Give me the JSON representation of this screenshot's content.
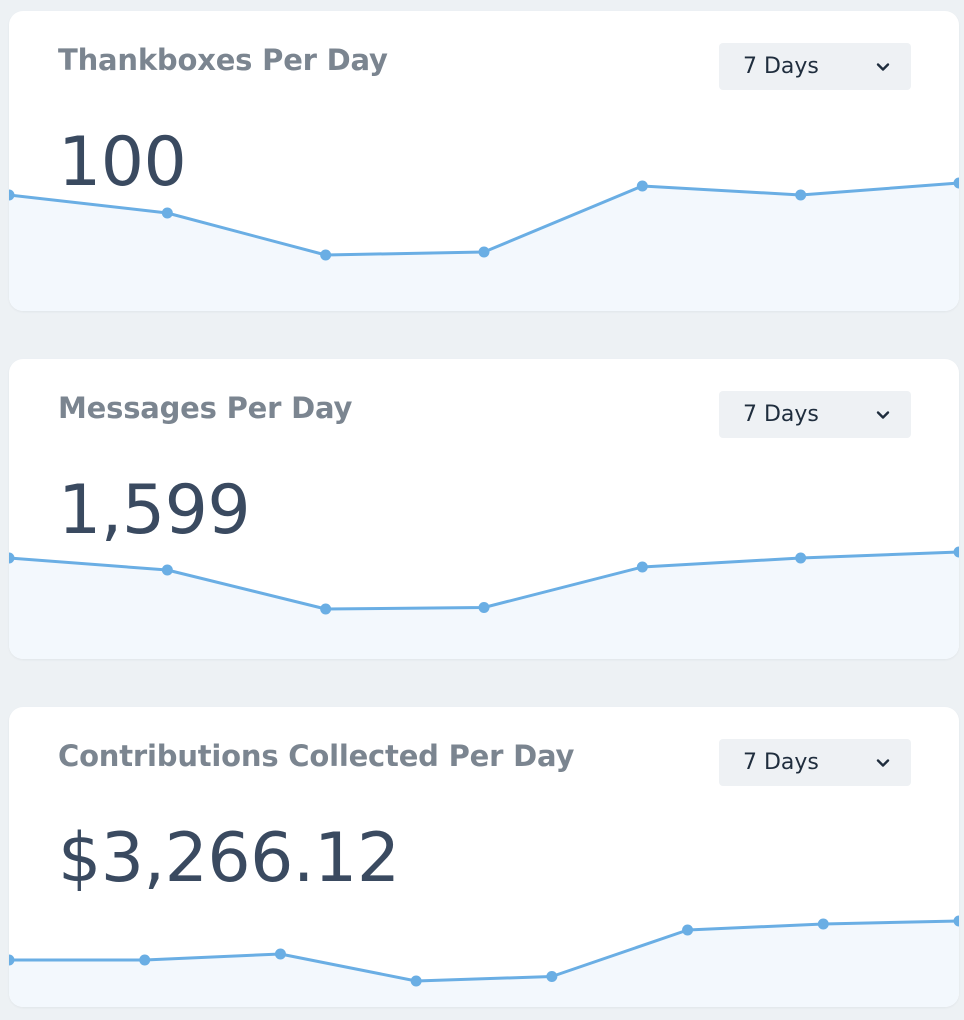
{
  "cards": [
    {
      "title": "Thankboxes Per Day",
      "range": "7 Days",
      "value": "100",
      "chart_data": {
        "type": "area",
        "points": 7,
        "values": [
          0.38,
          0.32,
          0.18,
          0.19,
          0.41,
          0.38,
          0.42
        ],
        "ylim": [
          0,
          1
        ],
        "color": "#6aaee4"
      }
    },
    {
      "title": "Messages Per Day",
      "range": "7 Days",
      "value": "1,599",
      "chart_data": {
        "type": "area",
        "points": 7,
        "values": [
          0.33,
          0.29,
          0.16,
          0.165,
          0.3,
          0.33,
          0.35
        ],
        "ylim": [
          0,
          1
        ],
        "color": "#6aaee4"
      }
    },
    {
      "title": "Contributions Collected Per Day",
      "range": "7 Days",
      "value": "$3,266.12",
      "chart_data": {
        "type": "area",
        "points": 8,
        "values": [
          0.15,
          0.15,
          0.17,
          0.08,
          0.095,
          0.25,
          0.27,
          0.28
        ],
        "ylim": [
          0,
          1
        ],
        "color": "#6aaee4"
      }
    }
  ]
}
